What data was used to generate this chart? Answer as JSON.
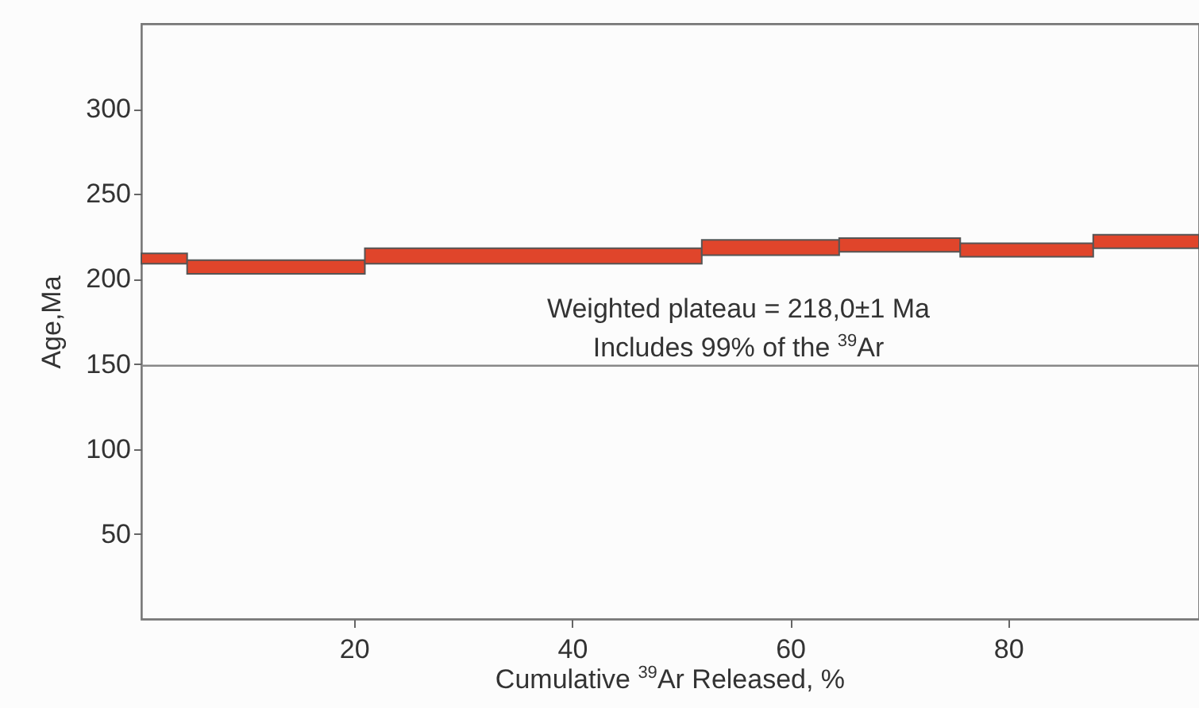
{
  "chart_data": {
    "type": "histogram",
    "xlabel": "Cumulative $^{39}$Ar Released, %",
    "ylabel": "Age,Ma",
    "bins": [
      0.5,
      4.7,
      21,
      51.9,
      64.5,
      75.6,
      87.8,
      97.5
    ],
    "base": [
      209,
      203,
      209,
      214,
      216,
      213,
      218
    ],
    "values": [
      6,
      8,
      9,
      9,
      8,
      8,
      8
    ],
    "color": "#e0452b",
    "xlim": [
      0.5,
      97.5
    ],
    "xticks": [
      20,
      40,
      60,
      80
    ],
    "ylim": [
      0,
      350
    ],
    "yticks": [
      50,
      100,
      150,
      200,
      250,
      300
    ],
    "ref_lines": [
      {
        "axis": "y",
        "value": 149,
        "color": "#888888"
      }
    ],
    "annotations": [
      "Weighted plateau = 218,0±1 Ma",
      "Includes 99% of the $^{39}$Ar"
    ]
  }
}
